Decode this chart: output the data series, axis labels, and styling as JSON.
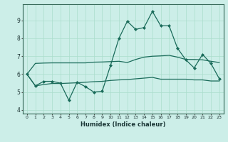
{
  "title": "",
  "xlabel": "Humidex (Indice chaleur)",
  "bg_color": "#cceee8",
  "line_color": "#1a6b5a",
  "grid_color": "#aaddcc",
  "xlim": [
    -0.5,
    23.5
  ],
  "ylim": [
    3.8,
    9.9
  ],
  "yticks": [
    4,
    5,
    6,
    7,
    8,
    9
  ],
  "xticks": [
    0,
    1,
    2,
    3,
    4,
    5,
    6,
    7,
    8,
    9,
    10,
    11,
    12,
    13,
    14,
    15,
    16,
    17,
    18,
    19,
    20,
    21,
    22,
    23
  ],
  "line1_x": [
    0,
    1,
    2,
    3,
    4,
    5,
    6,
    7,
    8,
    9,
    10,
    11,
    12,
    13,
    14,
    15,
    16,
    17,
    18,
    19,
    20,
    21,
    22,
    23
  ],
  "line1_y": [
    6.0,
    5.35,
    5.6,
    5.6,
    5.5,
    4.55,
    5.55,
    5.3,
    5.0,
    5.05,
    6.5,
    8.0,
    8.95,
    8.5,
    8.6,
    9.5,
    8.7,
    8.7,
    7.45,
    6.8,
    6.35,
    7.1,
    6.6,
    5.75
  ],
  "line2_x": [
    0,
    1,
    2,
    3,
    4,
    5,
    6,
    7,
    8,
    9,
    10,
    11,
    12,
    13,
    14,
    15,
    16,
    17,
    18,
    19,
    20,
    21,
    22,
    23
  ],
  "line2_y": [
    6.0,
    6.6,
    6.62,
    6.63,
    6.63,
    6.63,
    6.63,
    6.63,
    6.67,
    6.68,
    6.7,
    6.72,
    6.65,
    6.82,
    6.95,
    7.0,
    7.02,
    7.05,
    6.95,
    6.82,
    6.82,
    6.8,
    6.72,
    6.65
  ],
  "line3_x": [
    0,
    1,
    2,
    3,
    4,
    5,
    6,
    7,
    8,
    9,
    10,
    11,
    12,
    13,
    14,
    15,
    16,
    17,
    18,
    19,
    20,
    21,
    22,
    23
  ],
  "line3_y": [
    6.0,
    5.35,
    5.42,
    5.48,
    5.48,
    5.5,
    5.52,
    5.55,
    5.58,
    5.6,
    5.65,
    5.68,
    5.7,
    5.74,
    5.78,
    5.82,
    5.72,
    5.72,
    5.72,
    5.72,
    5.68,
    5.68,
    5.62,
    5.62
  ]
}
